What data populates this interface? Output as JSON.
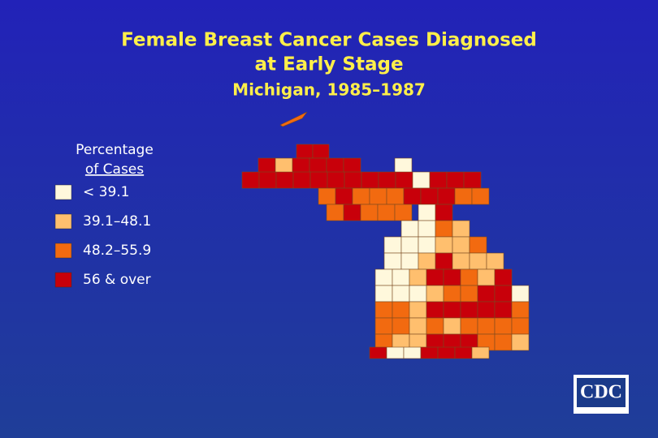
{
  "header": {
    "title": [
      "Female Breast Cancer Cases Diagnosed",
      "at Early Stage"
    ],
    "subtitle": "Michigan, 1985–1987"
  },
  "legend": {
    "title": [
      "Percentage",
      "of Cases"
    ],
    "items": [
      {
        "label": "< 39.1",
        "color": "#fff8dc"
      },
      {
        "label": "39.1–48.1",
        "color": "#ffbf6e"
      },
      {
        "label": "48.2–55.9",
        "color": "#f26a10"
      },
      {
        "label": "56 & over",
        "color": "#c8000a"
      }
    ]
  },
  "logo": "CDC"
}
